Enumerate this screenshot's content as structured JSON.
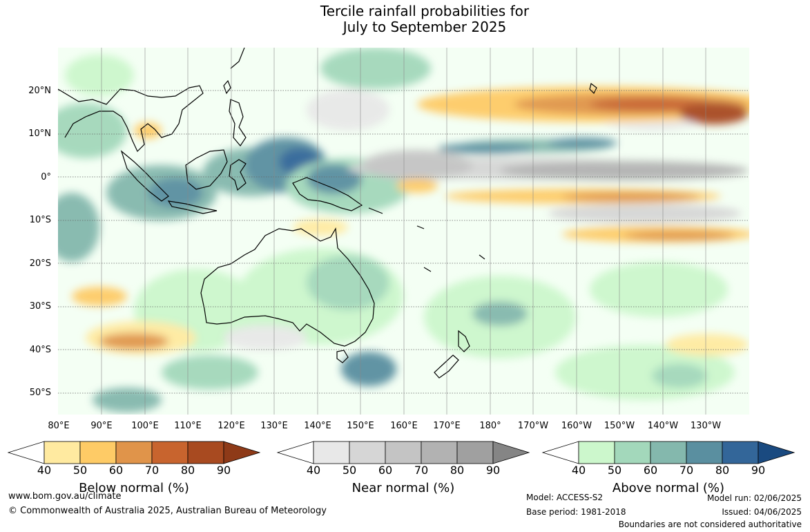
{
  "title": {
    "line1": "Tercile rainfall probabilities for",
    "line2": "July to September 2025"
  },
  "map": {
    "latitude_labels": [
      "20°N",
      "10°N",
      "0°",
      "10°S",
      "20°S",
      "30°S",
      "40°S",
      "50°S"
    ],
    "longitude_labels": [
      "80°E",
      "90°E",
      "100°E",
      "110°E",
      "120°E",
      "130°E",
      "140°E",
      "150°E",
      "160°E",
      "170°E",
      "180°",
      "170°W",
      "160°W",
      "150°W",
      "140°W",
      "130°W"
    ],
    "gridlines": "dotted",
    "coastlines": "black"
  },
  "legends": [
    {
      "title": "Below normal (%)",
      "ticks": [
        "40",
        "50",
        "60",
        "70",
        "80",
        "90"
      ],
      "colors": [
        "#ffffff",
        "#ffeaa0",
        "#fecb66",
        "#e0944a",
        "#c8642e",
        "#a84a20",
        "#8e3a18"
      ]
    },
    {
      "title": "Near normal (%)",
      "ticks": [
        "40",
        "50",
        "60",
        "70",
        "80",
        "90"
      ],
      "colors": [
        "#ffffff",
        "#e8e8e8",
        "#d6d6d6",
        "#c4c4c4",
        "#b2b2b2",
        "#a0a0a0",
        "#858585"
      ]
    },
    {
      "title": "Above normal (%)",
      "ticks": [
        "40",
        "50",
        "60",
        "70",
        "80",
        "90"
      ],
      "colors": [
        "#ffffff",
        "#ccf7cc",
        "#a3d8bb",
        "#84b8ad",
        "#5a8fa0",
        "#336699",
        "#1a4a80"
      ]
    }
  ],
  "footer": {
    "website": "www.bom.gov.au/climate",
    "copyright": "© Commonwealth of Australia 2025, Australian Bureau of Meteorology",
    "model": "Model: ACCESS-S2",
    "base_period": "Base period: 1981-2018",
    "model_run": "Model run: 02/06/2025",
    "issued": "Issued: 04/06/2025",
    "disclaimer": "Boundaries are not considered authoritative"
  }
}
